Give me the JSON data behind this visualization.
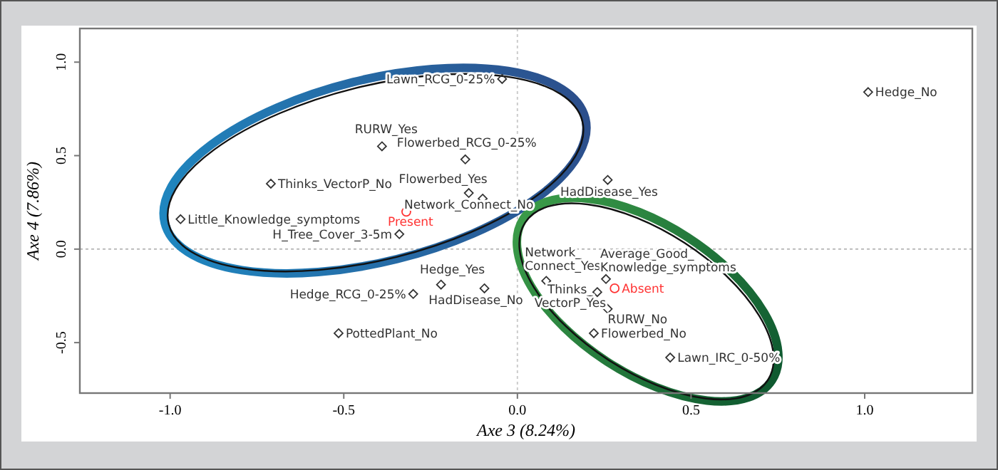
{
  "chart_data": {
    "type": "scatter",
    "xlabel": "Axe 3 (8.24%)",
    "ylabel": "Axe 4 (7.86%)",
    "xlim": [
      -1.26,
      1.31
    ],
    "ylim": [
      -0.77,
      1.18
    ],
    "xticks": [
      {
        "value": -1,
        "label": "-1.0"
      },
      {
        "value": -0.5,
        "label": "-0.5"
      },
      {
        "value": 0,
        "label": "0.0"
      },
      {
        "value": 0.5,
        "label": "0.5"
      },
      {
        "value": 1,
        "label": "1.0"
      }
    ],
    "yticks": [
      {
        "value": -0.5,
        "label": "-0.5"
      },
      {
        "value": 0,
        "label": "0.0"
      },
      {
        "value": 0.5,
        "label": "0.5"
      },
      {
        "value": 1,
        "label": "1.0"
      }
    ],
    "grid": false,
    "ref_lines": [
      {
        "axis": "x",
        "value": 0,
        "color": "#cccccc",
        "line_style": "dotted"
      },
      {
        "axis": "y",
        "value": 0,
        "color": "#bbbbbb",
        "line_style": "dotted"
      }
    ],
    "series": [
      {
        "color": "#333333",
        "marker": "diamond",
        "x": [
          -0.044,
          -0.39,
          -0.15,
          -0.71,
          -0.14,
          -0.1,
          -0.97,
          -0.34,
          -0.22,
          -0.3,
          -0.095,
          -0.515,
          1.01,
          0.26,
          0.083,
          0.23,
          0.255,
          0.26,
          0.22,
          0.44
        ],
        "values": [
          0.91,
          0.55,
          0.48,
          0.35,
          0.3,
          0.27,
          0.16,
          0.08,
          -0.19,
          -0.24,
          -0.21,
          -0.45,
          0.84,
          0.37,
          -0.17,
          -0.23,
          -0.16,
          -0.32,
          -0.45,
          -0.58
        ]
      },
      {
        "color": "#ff3333",
        "marker": "circle",
        "x": [
          -0.32,
          0.28
        ],
        "values": [
          0.2,
          -0.21
        ]
      }
    ],
    "annotations": [
      {
        "text": "Lawn_RCG_0-25%",
        "x": -0.044,
        "y": 0.91
      },
      {
        "text": "RURW_Yes",
        "x": -0.39,
        "y": 0.55
      },
      {
        "text": "Flowerbed_RCG_0-25%",
        "x": -0.15,
        "y": 0.48
      },
      {
        "text": "Thinks_VectorP_No",
        "x": -0.71,
        "y": 0.35
      },
      {
        "text": "Flowerbed_Yes",
        "x": -0.14,
        "y": 0.3
      },
      {
        "text": "Network_Connect_No",
        "x": -0.1,
        "y": 0.27
      },
      {
        "text": "Little_Knowledge_symptoms",
        "x": -0.97,
        "y": 0.16
      },
      {
        "text": "H_Tree_Cover_3-5m",
        "x": -0.34,
        "y": 0.08
      },
      {
        "text": "Hedge_Yes",
        "x": -0.22,
        "y": -0.19
      },
      {
        "text": "Hedge_RCG_0-25%",
        "x": -0.3,
        "y": -0.24
      },
      {
        "text": "HadDisease_No",
        "x": -0.095,
        "y": -0.21
      },
      {
        "text": "PottedPlant_No",
        "x": -0.515,
        "y": -0.45
      },
      {
        "text": "Hedge_No",
        "x": 1.01,
        "y": 0.84
      },
      {
        "text": "HadDisease_Yes",
        "x": 0.26,
        "y": 0.37
      },
      {
        "text": "Network_Connect_Yes",
        "x": 0.083,
        "y": -0.17
      },
      {
        "text": "Thinks_VectorP_Yes",
        "x": 0.23,
        "y": -0.23
      },
      {
        "text": "Average_Good_Knowledge_symptoms",
        "x": 0.255,
        "y": -0.16
      },
      {
        "text": "RURW_No",
        "x": 0.26,
        "y": -0.32
      },
      {
        "text": "Flowerbed_No",
        "x": 0.22,
        "y": -0.45
      },
      {
        "text": "Lawn_IRC_0-50%",
        "x": 0.44,
        "y": -0.58
      },
      {
        "text": "Present",
        "x": -0.32,
        "y": 0.2
      },
      {
        "text": "Absent",
        "x": 0.28,
        "y": -0.21
      }
    ]
  }
}
